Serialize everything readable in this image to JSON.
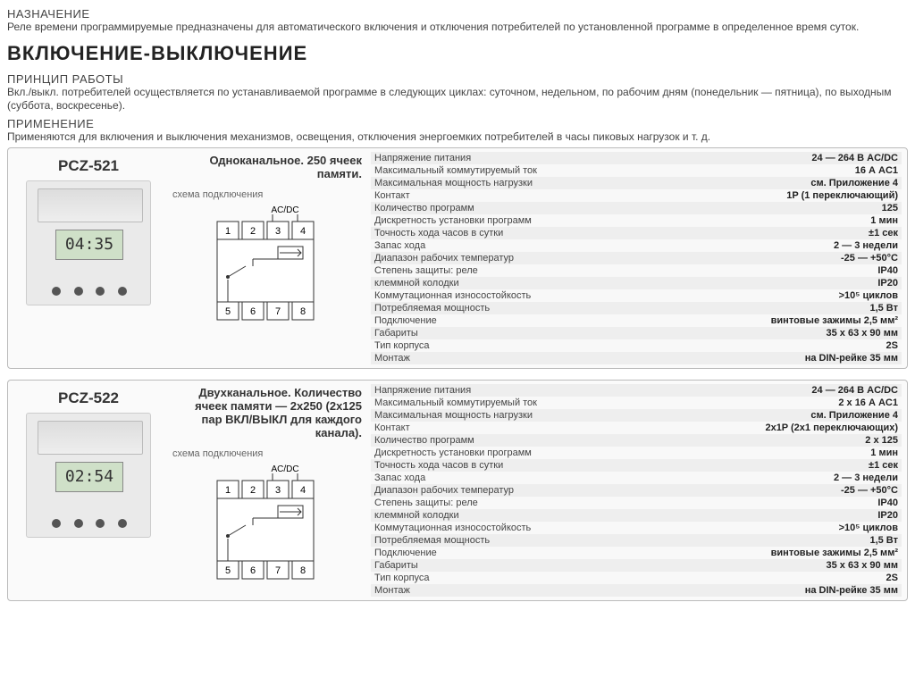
{
  "headings": {
    "purpose_h": "НАЗНАЧЕНИЕ",
    "purpose_t": "Реле времени программируемые предназначены для автоматического включения и отключения потребителей по установленной программе в определенное время суток.",
    "big_title": "ВКЛЮЧЕНИЕ-ВЫКЛЮЧЕНИЕ",
    "principle_h": "ПРИНЦИП РАБОТЫ",
    "principle_t": "Вкл./выкл. потребителей осуществляется по устанавливаемой программе в следующих циклах: суточном, недельном, по рабочим дням (понедельник — пятница), по выходным (суббота, воскресенье).",
    "usage_h": "ПРИМЕНЕНИЕ",
    "usage_t": "Применяются для включения и выключения механизмов, освещения, отключения энергоемких потребителей в часы пиковых нагрузок и т. д."
  },
  "schema": {
    "label": "схема подключения",
    "acdc": "AC/DC",
    "terminals_top": [
      "1",
      "2",
      "3",
      "4"
    ],
    "terminals_bottom": [
      "5",
      "6",
      "7",
      "8"
    ]
  },
  "products": [
    {
      "model": "PCZ-521",
      "display": "04:35",
      "title": "Одноканальное. 250 ячеек памяти.",
      "specs": [
        {
          "l": "Напряжение питания",
          "v": "24 — 264 В AC/DC"
        },
        {
          "l": "Максимальный коммутируемый ток",
          "v": "16 А AC1"
        },
        {
          "l": "Максимальная мощность нагрузки",
          "v": "см. Приложение 4"
        },
        {
          "l": "Контакт",
          "v": "1P (1 переключающий)"
        },
        {
          "l": "Количество программ",
          "v": "125"
        },
        {
          "l": "Дискретность установки программ",
          "v": "1 мин"
        },
        {
          "l": "Точность хода часов в сутки",
          "v": "±1 сек"
        },
        {
          "l": "Запас хода",
          "v": "2 — 3 недели"
        },
        {
          "l": "Диапазон рабочих температур",
          "v": "-25 — +50°C"
        },
        {
          "l": "Степень защиты: реле",
          "v": "IP40"
        },
        {
          "l": "клеммной колодки",
          "v": "IP20"
        },
        {
          "l": "Коммутационная износостойкость",
          "v": ">10⁵ циклов"
        },
        {
          "l": "Потребляемая мощность",
          "v": "1,5 Вт"
        },
        {
          "l": "Подключение",
          "v": "винтовые зажимы 2,5 мм²"
        },
        {
          "l": "Габариты",
          "v": "35 x 63 x 90 мм"
        },
        {
          "l": "Тип корпуса",
          "v": "2S"
        },
        {
          "l": "Монтаж",
          "v": "на DIN-рейке 35 мм"
        }
      ]
    },
    {
      "model": "PCZ-522",
      "display": "02:54",
      "title": "Двухканальное. Количество ячеек памяти — 2x250 (2x125 пар ВКЛ/ВЫКЛ для каждого канала).",
      "specs": [
        {
          "l": "Напряжение питания",
          "v": "24 — 264 В AC/DC"
        },
        {
          "l": "Максимальный коммутируемый ток",
          "v": "2 x 16 А AC1"
        },
        {
          "l": "Максимальная мощность нагрузки",
          "v": "см. Приложение 4"
        },
        {
          "l": "Контакт",
          "v": "2x1P (2x1 переключающих)"
        },
        {
          "l": "Количество программ",
          "v": "2 x 125"
        },
        {
          "l": "Дискретность установки программ",
          "v": "1 мин"
        },
        {
          "l": "Точность хода часов в сутки",
          "v": "±1 сек"
        },
        {
          "l": "Запас хода",
          "v": "2 — 3 недели"
        },
        {
          "l": "Диапазон рабочих температур",
          "v": "-25 — +50°C"
        },
        {
          "l": "Степень защиты: реле",
          "v": "IP40"
        },
        {
          "l": "клеммной колодки",
          "v": "IP20"
        },
        {
          "l": "Коммутационная износостойкость",
          "v": ">10⁵ циклов"
        },
        {
          "l": "Потребляемая мощность",
          "v": "1,5 Вт"
        },
        {
          "l": "Подключение",
          "v": "винтовые зажимы 2,5 мм²"
        },
        {
          "l": "Габариты",
          "v": "35 x 63 x 90 мм"
        },
        {
          "l": "Тип корпуса",
          "v": "2S"
        },
        {
          "l": "Монтаж",
          "v": "на DIN-рейке 35 мм"
        }
      ]
    }
  ],
  "colors": {
    "border": "#bbbbbb",
    "row_odd": "#eeeeee",
    "row_even": "#f8f8f8",
    "screen": "#cfe0c8"
  }
}
